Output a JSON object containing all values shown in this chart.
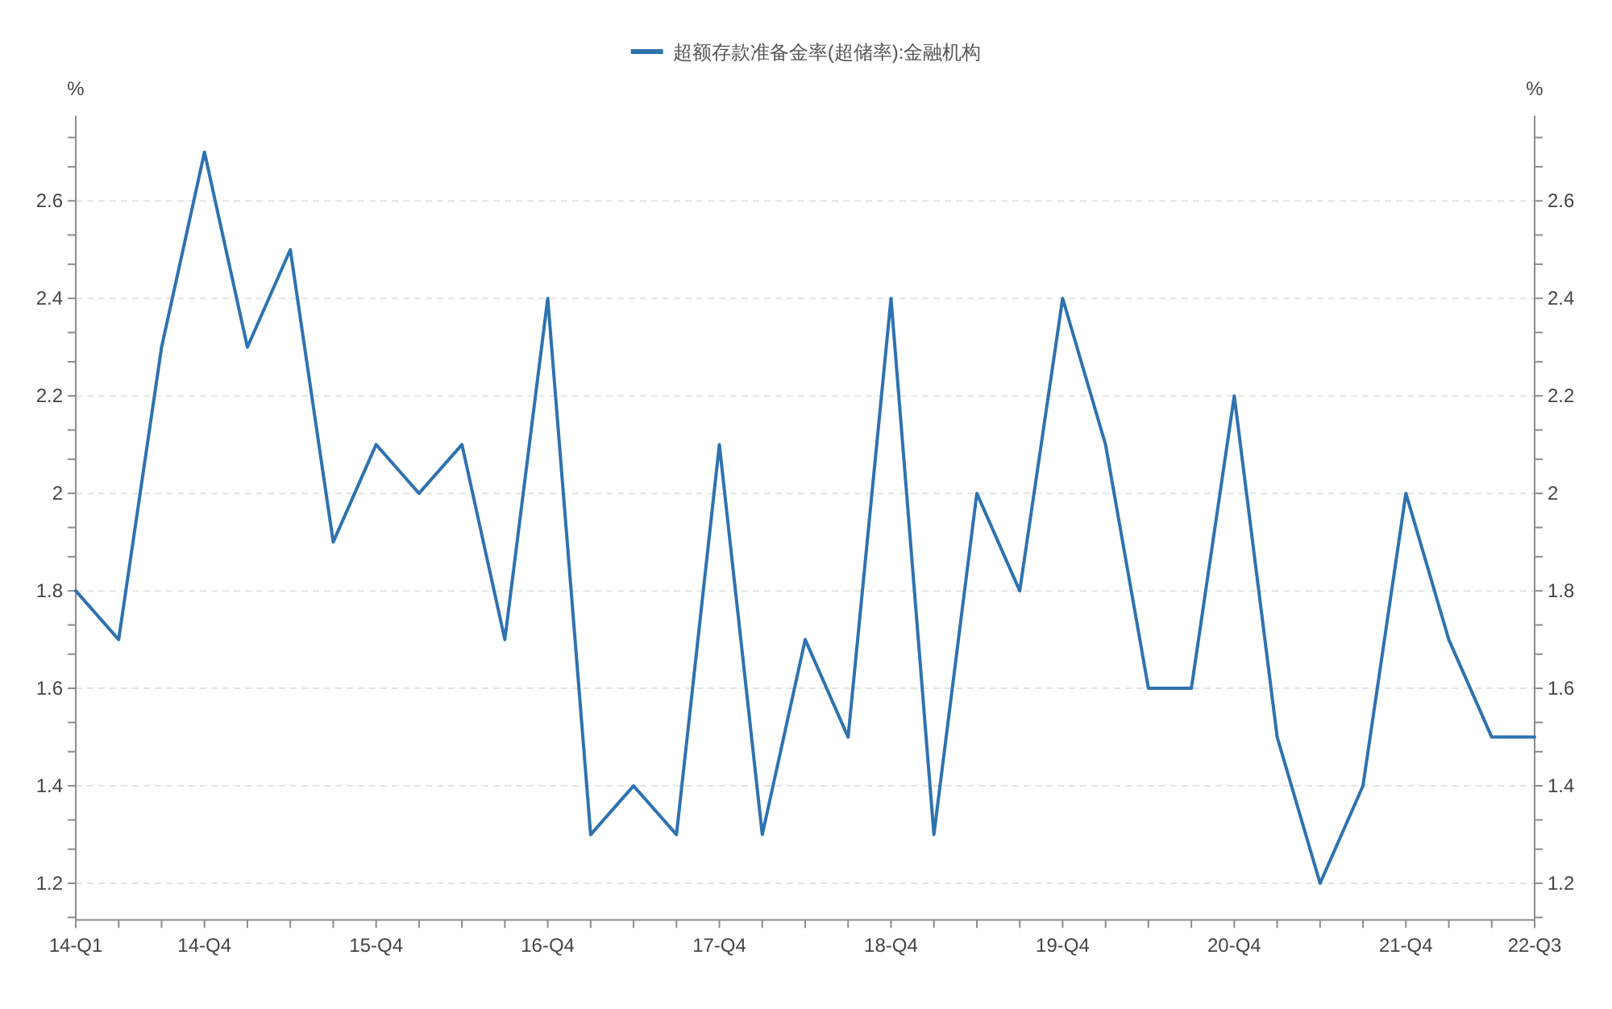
{
  "chart_data": {
    "type": "line",
    "categories": [
      "14-Q1",
      null,
      null,
      "14-Q4",
      null,
      null,
      null,
      "15-Q4",
      null,
      null,
      null,
      "16-Q4",
      null,
      null,
      null,
      "17-Q4",
      null,
      null,
      null,
      "18-Q4",
      null,
      null,
      null,
      "19-Q4",
      null,
      null,
      null,
      "20-Q4",
      null,
      null,
      null,
      "21-Q4",
      null,
      null,
      "22-Q3"
    ],
    "series": [
      {
        "name": "超额存款准备金率(超储率):金融机构",
        "color": "#2e72b0",
        "values": [
          1.8,
          1.7,
          2.3,
          2.7,
          2.3,
          2.5,
          1.9,
          2.1,
          2.0,
          2.1,
          1.7,
          2.4,
          1.3,
          1.4,
          1.3,
          2.1,
          1.3,
          1.7,
          1.5,
          2.4,
          1.3,
          2.0,
          1.8,
          2.4,
          2.1,
          1.6,
          1.6,
          2.2,
          1.5,
          1.2,
          1.4,
          2.0,
          1.7,
          1.5,
          1.5
        ]
      }
    ],
    "ylabel": "%",
    "y2label": "%",
    "ylim": [
      1.125,
      2.775
    ],
    "yticks": [
      {
        "value": 1.13,
        "label": null
      },
      1.2,
      {
        "value": 1.27,
        "label": null
      },
      {
        "value": 1.33,
        "label": null
      },
      1.4,
      {
        "value": 1.47,
        "label": null
      },
      {
        "value": 1.53,
        "label": null
      },
      1.6,
      {
        "value": 1.67,
        "label": null
      },
      {
        "value": 1.73,
        "label": null
      },
      1.8,
      {
        "value": 1.87,
        "label": null
      },
      {
        "value": 1.93,
        "label": null
      },
      2,
      {
        "value": 2.07,
        "label": null
      },
      {
        "value": 2.13,
        "label": null
      },
      2.2,
      {
        "value": 2.27,
        "label": null
      },
      {
        "value": 2.33,
        "label": null
      },
      2.4,
      {
        "value": 2.47,
        "label": null
      },
      {
        "value": 2.53,
        "label": null
      },
      2.6,
      {
        "value": 2.67,
        "label": null
      },
      {
        "value": 2.73,
        "label": null
      }
    ],
    "y2lim": [
      1.125,
      2.775
    ],
    "y2ticks": [
      {
        "value": 1.13,
        "label": null
      },
      1.2,
      {
        "value": 1.27,
        "label": null
      },
      {
        "value": 1.33,
        "label": null
      },
      1.4,
      {
        "value": 1.47,
        "label": null
      },
      {
        "value": 1.53,
        "label": null
      },
      1.6,
      {
        "value": 1.67,
        "label": null
      },
      {
        "value": 1.73,
        "label": null
      },
      1.8,
      {
        "value": 1.87,
        "label": null
      },
      {
        "value": 1.93,
        "label": null
      },
      2,
      {
        "value": 2.07,
        "label": null
      },
      {
        "value": 2.13,
        "label": null
      },
      2.2,
      {
        "value": 2.27,
        "label": null
      },
      {
        "value": 2.33,
        "label": null
      },
      2.4,
      {
        "value": 2.47,
        "label": null
      },
      {
        "value": 2.53,
        "label": null
      },
      2.6,
      {
        "value": 2.67,
        "label": null
      },
      {
        "value": 2.73,
        "label": null
      }
    ],
    "grid": "y",
    "legend": "top",
    "line_style": "solid"
  }
}
